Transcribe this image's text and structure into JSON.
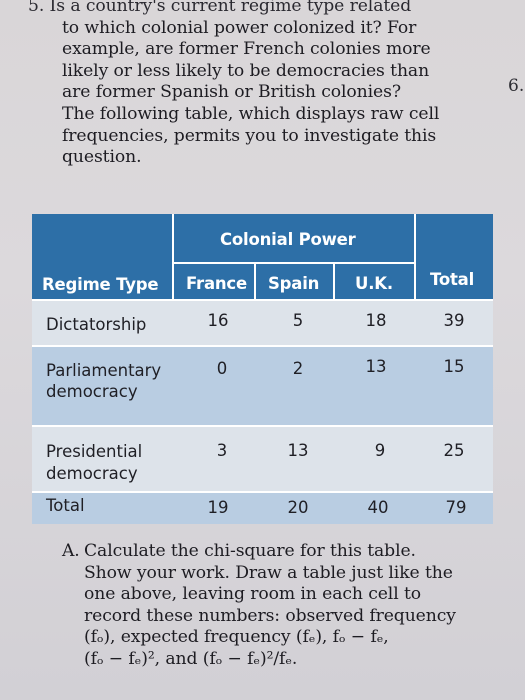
{
  "top_text": {
    "clipped": "5.   Is a country's current regime type related",
    "lines": [
      "to which colonial power colonized it? For",
      "example, are former French colonies more",
      "likely or less likely to be democracies than",
      "are former Spanish or British colonies?",
      "The following table, which displays raw cell",
      "frequencies, permits you to investigate this",
      "question."
    ]
  },
  "side_number": "6.",
  "table": {
    "group_header": "Colonial Power",
    "row_header": "Regime Type",
    "columns": [
      "France",
      "Spain",
      "U.K.",
      "Total"
    ],
    "rows": [
      {
        "label": "Dictatorship",
        "label2": "",
        "values": [
          "16",
          "5",
          "18",
          "39"
        ]
      },
      {
        "label": "Parliamentary",
        "label2": "democracy",
        "values": [
          "0",
          "2",
          "13",
          "15"
        ]
      },
      {
        "label": "Presidential",
        "label2": "democracy",
        "values": [
          "3",
          "13",
          "9",
          "25"
        ]
      },
      {
        "label": "Total",
        "label2": "",
        "values": [
          "19",
          "20",
          "40",
          "79"
        ]
      }
    ]
  },
  "bottom_text": {
    "label": "A.",
    "lines": [
      "Calculate the chi-square for this table.",
      "Show your work. Draw a table just like the",
      "one above, leaving room in each cell to",
      "record these numbers: observed frequency",
      "(fₒ), expected frequency (fₑ), fₒ − fₑ,",
      "(fₒ − fₑ)², and (fₒ − fₑ)²/fₑ."
    ]
  }
}
